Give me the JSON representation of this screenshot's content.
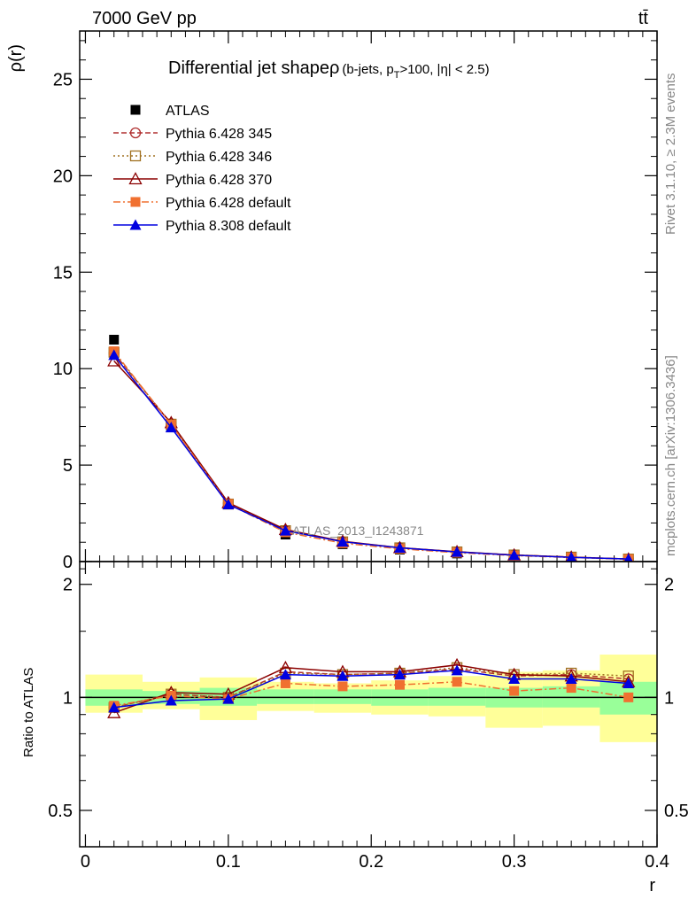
{
  "header": {
    "energy_label": "7000 GeV pp",
    "process_label": "tt̄",
    "rivet_label": "Rivet 3.1.10, ≥ 2.3M events",
    "mcplots_label": "mcplots.cern.ch [arXiv:1306.3436]",
    "analysis_label": "ATLAS_2013_I1243871"
  },
  "title": {
    "main": "Differential jet shapeρ",
    "sub": "(b-jets, p",
    "sub_T": "T",
    "sub_rest": ">100, |η| < 2.5)"
  },
  "chart_data": [
    {
      "type": "line",
      "panel": "main",
      "ylabel": "ρ(r)",
      "ylim": [
        0,
        27.5
      ],
      "yticks": [
        0,
        5,
        10,
        15,
        20,
        25
      ],
      "xlim": [
        -0.004,
        0.4
      ],
      "x": [
        0.02,
        0.06,
        0.1,
        0.14,
        0.18,
        0.22,
        0.26,
        0.3,
        0.34,
        0.38
      ],
      "series": [
        {
          "name": "ATLAS",
          "color": "#000000",
          "marker": "square-filled",
          "values": [
            11.5,
            7.0,
            3.0,
            1.4,
            0.9,
            0.62,
            0.42,
            0.3,
            0.2,
            0.12
          ]
        },
        {
          "name": "Pythia 6.428 345",
          "color": "#b03030",
          "marker": "circle-open",
          "dash": "6,3",
          "values": [
            10.8,
            7.15,
            3.0,
            1.62,
            1.03,
            0.72,
            0.5,
            0.34,
            0.23,
            0.13
          ]
        },
        {
          "name": "Pythia 6.428 346",
          "color": "#a07020",
          "marker": "square-open",
          "dash": "2,3",
          "values": [
            10.85,
            7.12,
            2.98,
            1.6,
            1.02,
            0.71,
            0.5,
            0.34,
            0.23,
            0.13
          ]
        },
        {
          "name": "Pythia 6.428 370",
          "color": "#8b0000",
          "marker": "triangle-open",
          "dash": "",
          "values": [
            10.4,
            7.2,
            3.05,
            1.66,
            1.05,
            0.72,
            0.51,
            0.34,
            0.23,
            0.13
          ]
        },
        {
          "name": "Pythia 6.428 default",
          "color": "#f07030",
          "marker": "square-filled",
          "dash": "8,3,2,3",
          "values": [
            10.9,
            7.1,
            2.98,
            1.52,
            0.95,
            0.66,
            0.46,
            0.31,
            0.21,
            0.12
          ]
        },
        {
          "name": "Pythia 8.308 default",
          "color": "#0000e0",
          "marker": "triangle-filled",
          "dash": "",
          "values": [
            10.7,
            6.95,
            2.96,
            1.6,
            1.03,
            0.71,
            0.5,
            0.33,
            0.22,
            0.13
          ]
        }
      ]
    },
    {
      "type": "line",
      "panel": "ratio",
      "ylabel": "Ratio to ATLAS",
      "xlabel": "r",
      "ylim": [
        0.4,
        2.3
      ],
      "yticks": [
        0.5,
        1,
        2
      ],
      "xticks": [
        0,
        0.1,
        0.2,
        0.3,
        0.4
      ],
      "xlim": [
        -0.004,
        0.4
      ],
      "bands": {
        "edges": [
          0,
          0.04,
          0.08,
          0.12,
          0.16,
          0.2,
          0.24,
          0.28,
          0.32,
          0.36,
          0.4
        ],
        "inner": [
          [
            0.95,
            1.05
          ],
          [
            0.96,
            1.04
          ],
          [
            0.95,
            1.06
          ],
          [
            0.96,
            1.05
          ],
          [
            0.96,
            1.05
          ],
          [
            0.95,
            1.05
          ],
          [
            0.95,
            1.06
          ],
          [
            0.94,
            1.06
          ],
          [
            0.94,
            1.07
          ],
          [
            0.9,
            1.1
          ]
        ],
        "outer": [
          [
            0.91,
            1.15
          ],
          [
            0.93,
            1.1
          ],
          [
            0.87,
            1.13
          ],
          [
            0.92,
            1.1
          ],
          [
            0.91,
            1.09
          ],
          [
            0.9,
            1.11
          ],
          [
            0.89,
            1.14
          ],
          [
            0.83,
            1.17
          ],
          [
            0.84,
            1.18
          ],
          [
            0.76,
            1.3
          ]
        ],
        "inner_color": "#99ff99",
        "outer_color": "#ffff99"
      },
      "x": [
        0.02,
        0.06,
        0.1,
        0.14,
        0.18,
        0.22,
        0.26,
        0.3,
        0.34,
        0.38
      ],
      "series": [
        {
          "name": "Pythia 6.428 345",
          "color": "#b03030",
          "marker": "circle-open",
          "dash": "6,3",
          "values": [
            0.94,
            1.02,
            1.0,
            1.17,
            1.15,
            1.16,
            1.19,
            1.14,
            1.15,
            1.12
          ]
        },
        {
          "name": "Pythia 6.428 346",
          "color": "#a07020",
          "marker": "square-open",
          "dash": "2,3",
          "values": [
            0.94,
            1.02,
            1.0,
            1.16,
            1.15,
            1.16,
            1.2,
            1.15,
            1.16,
            1.14
          ]
        },
        {
          "name": "Pythia 6.428 370",
          "color": "#8b0000",
          "marker": "triangle-open",
          "dash": "",
          "values": [
            0.91,
            1.03,
            1.02,
            1.2,
            1.17,
            1.17,
            1.22,
            1.15,
            1.14,
            1.1
          ]
        },
        {
          "name": "Pythia 6.428 default",
          "color": "#f07030",
          "marker": "square-filled",
          "dash": "8,3,2,3",
          "values": [
            0.95,
            1.01,
            0.99,
            1.09,
            1.07,
            1.08,
            1.1,
            1.04,
            1.06,
            1.0
          ]
        },
        {
          "name": "Pythia 8.308 default",
          "color": "#0000e0",
          "marker": "triangle-filled",
          "dash": "",
          "values": [
            0.94,
            0.98,
            0.99,
            1.15,
            1.14,
            1.15,
            1.18,
            1.12,
            1.12,
            1.09
          ]
        }
      ]
    }
  ]
}
